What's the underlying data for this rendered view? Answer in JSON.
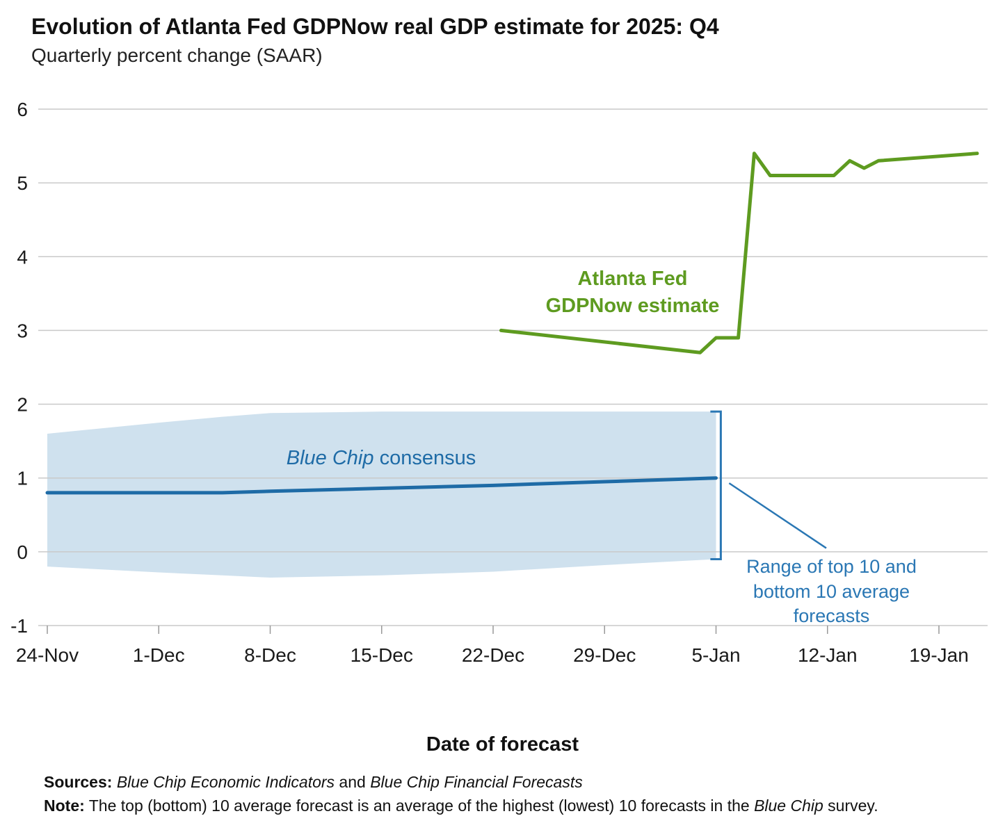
{
  "header": {
    "title": "Evolution of Atlanta Fed GDPNow real GDP estimate for 2025: Q4",
    "subtitle": "Quarterly percent change (SAAR)"
  },
  "annotations": {
    "gdpnow_label": "Atlanta Fed\nGDPNow estimate",
    "bluechip_label_italic": "Blue Chip",
    "bluechip_label_rest": " consensus",
    "range_label": "Range of top 10 and\nbottom 10 average\nforecasts"
  },
  "footer": {
    "xlabel": "Date of forecast",
    "sources_label": "Sources: ",
    "sources_italic1": "Blue Chip Economic Indicators",
    "sources_and": " and ",
    "sources_italic2": "Blue Chip Financial Forecasts",
    "note_label": "Note:",
    "note_text1": " The top (bottom) 10 average forecast is an average of the highest (lowest) 10 forecasts in the ",
    "note_italic": "Blue Chip",
    "note_text2": " survey."
  },
  "chart_data": {
    "type": "line",
    "title": "Evolution of Atlanta Fed GDPNow real GDP estimate for 2025: Q4",
    "subtitle": "Quarterly percent change (SAAR)",
    "xlabel": "Date of forecast",
    "x_unit": "days since 24-Nov",
    "xlim": [
      0,
      60
    ],
    "ylim": [
      -1,
      6
    ],
    "grid": true,
    "y_ticks": [
      6,
      5,
      4,
      3,
      2,
      1,
      0,
      -1
    ],
    "x_ticks": [
      {
        "day": 0,
        "label": "24-Nov"
      },
      {
        "day": 7,
        "label": "1-Dec"
      },
      {
        "day": 14,
        "label": "8-Dec"
      },
      {
        "day": 21,
        "label": "15-Dec"
      },
      {
        "day": 28,
        "label": "22-Dec"
      },
      {
        "day": 35,
        "label": "29-Dec"
      },
      {
        "day": 42,
        "label": "5-Jan"
      },
      {
        "day": 49,
        "label": "12-Jan"
      },
      {
        "day": 56,
        "label": "19-Jan"
      }
    ],
    "series": [
      {
        "name": "Atlanta Fed GDPNow estimate",
        "color": "#5e9b20",
        "width": 5,
        "x": [
          28.5,
          41.0,
          42.0,
          43.4,
          44.4,
          45.4,
          49.4,
          50.4,
          51.3,
          52.2,
          58.4
        ],
        "values": [
          3.0,
          2.7,
          2.9,
          2.9,
          5.4,
          5.1,
          5.1,
          5.3,
          5.2,
          5.3,
          5.4
        ]
      },
      {
        "name": "Blue Chip consensus",
        "color": "#1e6ba6",
        "width": 5,
        "x": [
          0,
          7,
          11,
          14,
          21,
          28,
          35,
          42
        ],
        "values": [
          0.8,
          0.8,
          0.8,
          0.82,
          0.86,
          0.9,
          0.95,
          1.0
        ]
      }
    ],
    "band": {
      "name": "Range of top 10 and bottom 10 average forecasts",
      "color": "#cfe1ee",
      "x": [
        0,
        7,
        11,
        14,
        21,
        28,
        35,
        42
      ],
      "top": [
        1.6,
        1.75,
        1.83,
        1.88,
        1.9,
        1.9,
        1.9,
        1.9
      ],
      "bottom": [
        -0.2,
        -0.28,
        -0.32,
        -0.35,
        -0.32,
        -0.27,
        -0.18,
        -0.1
      ]
    },
    "bracket": {
      "x_day": 42.3,
      "top": 1.9,
      "bottom": -0.1,
      "color": "#2a77b4"
    }
  }
}
